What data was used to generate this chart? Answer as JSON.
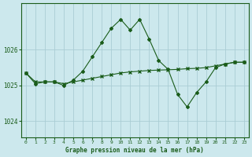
{
  "title": "Graphe pression niveau de la mer (hPa)",
  "background_color": "#cce8ed",
  "line_color": "#1a5c1a",
  "grid_color": "#aacdd4",
  "x_ticks": [
    0,
    1,
    2,
    3,
    4,
    5,
    6,
    7,
    8,
    9,
    10,
    11,
    12,
    13,
    14,
    15,
    16,
    17,
    18,
    19,
    20,
    21,
    22,
    23
  ],
  "y_ticks": [
    1024,
    1025,
    1026
  ],
  "ylim": [
    1023.55,
    1027.3
  ],
  "xlim": [
    -0.5,
    23.5
  ],
  "series_spike_x": [
    0,
    1,
    2,
    3,
    4,
    5,
    6,
    7,
    8,
    9,
    10,
    11,
    12,
    13,
    14,
    15,
    16,
    17,
    18,
    19,
    20,
    21,
    22,
    23
  ],
  "series_spike_y": [
    1025.35,
    1025.05,
    1025.1,
    1025.1,
    1025.0,
    1025.15,
    1025.4,
    1025.8,
    1026.2,
    1026.6,
    1026.85,
    1026.55,
    1026.85,
    1026.3,
    1025.7,
    1025.45,
    1024.75,
    1024.4,
    1024.8,
    1025.1,
    1025.5,
    1025.6,
    1025.65,
    1025.65
  ],
  "series_flat_x": [
    0,
    1,
    2,
    3,
    4,
    5,
    6,
    7,
    8,
    9,
    10,
    11,
    12,
    13,
    14,
    15,
    16,
    17,
    18,
    19,
    20,
    21,
    22,
    23
  ],
  "series_flat_y": [
    1025.35,
    1025.1,
    1025.1,
    1025.1,
    1025.05,
    1025.1,
    1025.15,
    1025.2,
    1025.25,
    1025.3,
    1025.35,
    1025.38,
    1025.4,
    1025.42,
    1025.43,
    1025.44,
    1025.45,
    1025.47,
    1025.48,
    1025.5,
    1025.55,
    1025.6,
    1025.65,
    1025.65
  ]
}
